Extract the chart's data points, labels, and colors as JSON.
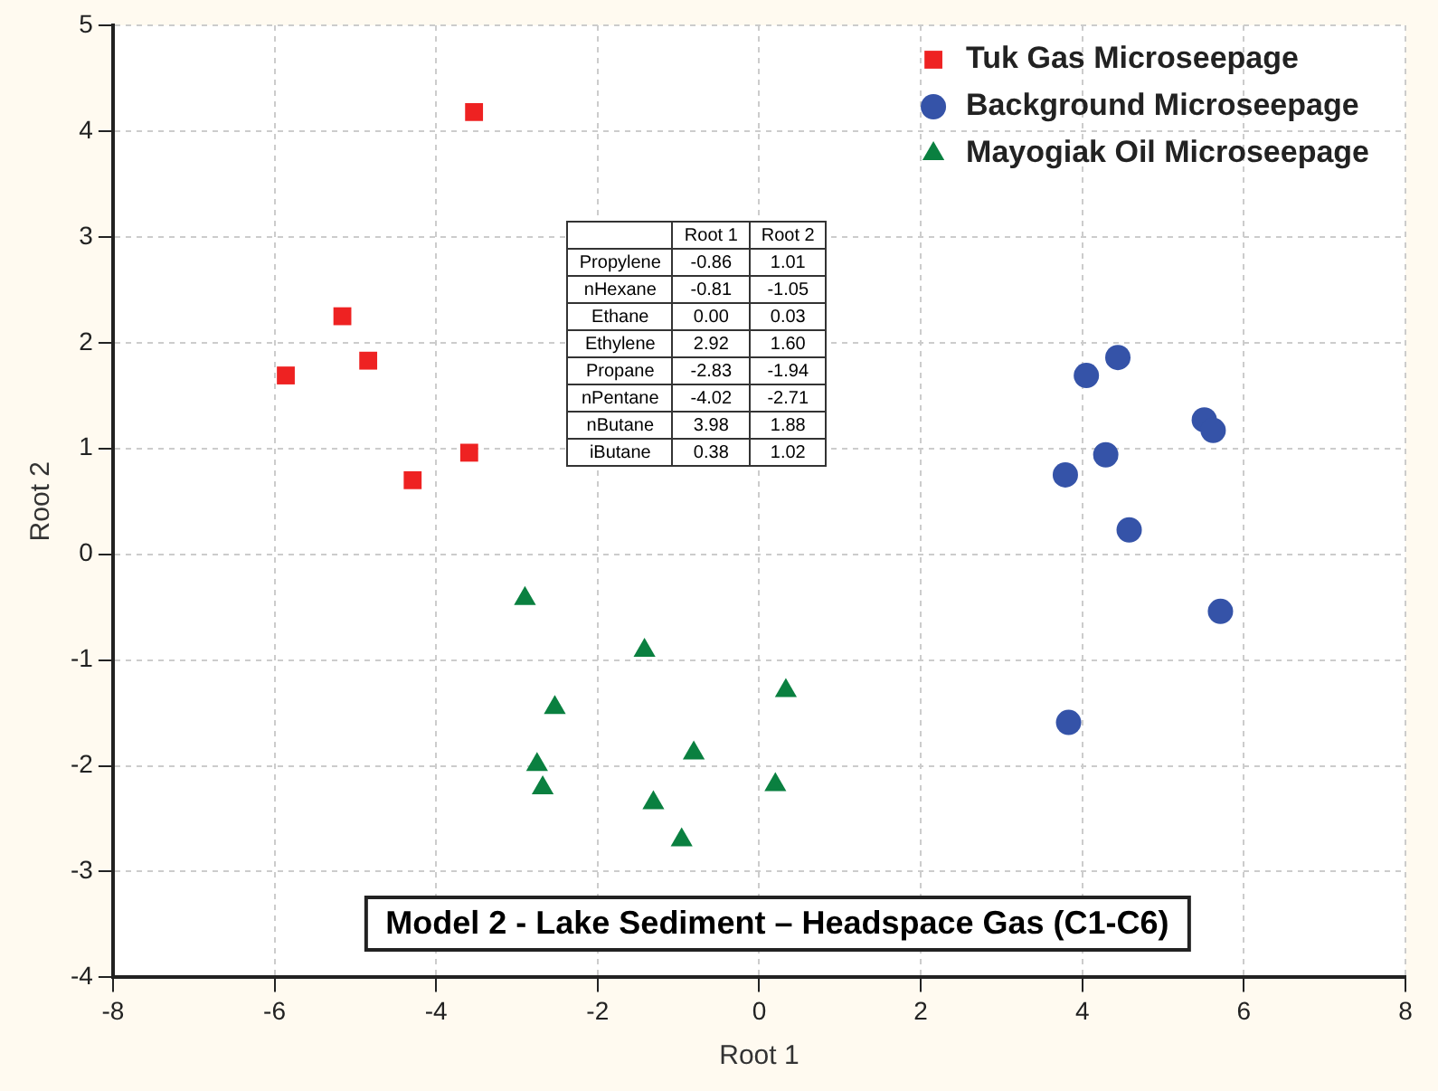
{
  "chart_data": {
    "type": "scatter",
    "title": "Model 2 - Lake Sediment – Headspace Gas (C1-C6)",
    "xlabel": "Root 1",
    "ylabel": "Root 2",
    "xlim": [
      -8,
      8
    ],
    "xticks": [
      -8,
      -6,
      -4,
      -2,
      0,
      2,
      4,
      6,
      8
    ],
    "ylim": [
      -4,
      5
    ],
    "yticks": [
      -4,
      -3,
      -2,
      -1,
      0,
      1,
      2,
      3,
      4,
      5
    ],
    "grid": true,
    "legend": "top right",
    "series": [
      {
        "name": "Tuk Gas Microseepage",
        "color": "#ee2222",
        "marker": "square",
        "x": [
          -5.86,
          -5.16,
          -4.84,
          -4.29,
          -3.59,
          -3.53
        ],
        "values": [
          1.69,
          2.25,
          1.83,
          0.7,
          0.96,
          4.18
        ]
      },
      {
        "name": "Background Microseepage",
        "color": "#3553a8",
        "marker": "circle",
        "x": [
          4.05,
          4.44,
          3.79,
          4.29,
          4.58,
          5.51,
          5.62,
          5.71,
          3.83
        ],
        "values": [
          1.69,
          1.86,
          0.75,
          0.94,
          0.23,
          1.27,
          1.17,
          -0.54,
          -1.59
        ]
      },
      {
        "name": "Mayogiak Oil Microseepage",
        "color": "#0a8040",
        "marker": "triangle",
        "x": [
          -2.9,
          -1.42,
          -2.53,
          0.33,
          -2.75,
          -2.68,
          -0.81,
          -1.31,
          0.2,
          -0.96
        ],
        "values": [
          -0.42,
          -0.91,
          -1.45,
          -1.29,
          -1.99,
          -2.21,
          -1.88,
          -2.35,
          -2.18,
          -2.7
        ]
      }
    ],
    "annotations": [
      null,
      "Root 1",
      "Root 2",
      "Propylene",
      "-0.86",
      "1.01",
      "nHexane",
      "-0.81",
      "-1.05",
      "Ethane",
      "0.00",
      "0.03",
      "Ethylene",
      "2.92",
      "1.60",
      "Propane",
      "-2.83",
      "-1.94",
      "nPentane",
      "-4.02",
      "-2.71",
      "nButane",
      "3.98",
      "1.88",
      "iButane",
      "0.38",
      "1.02"
    ]
  }
}
